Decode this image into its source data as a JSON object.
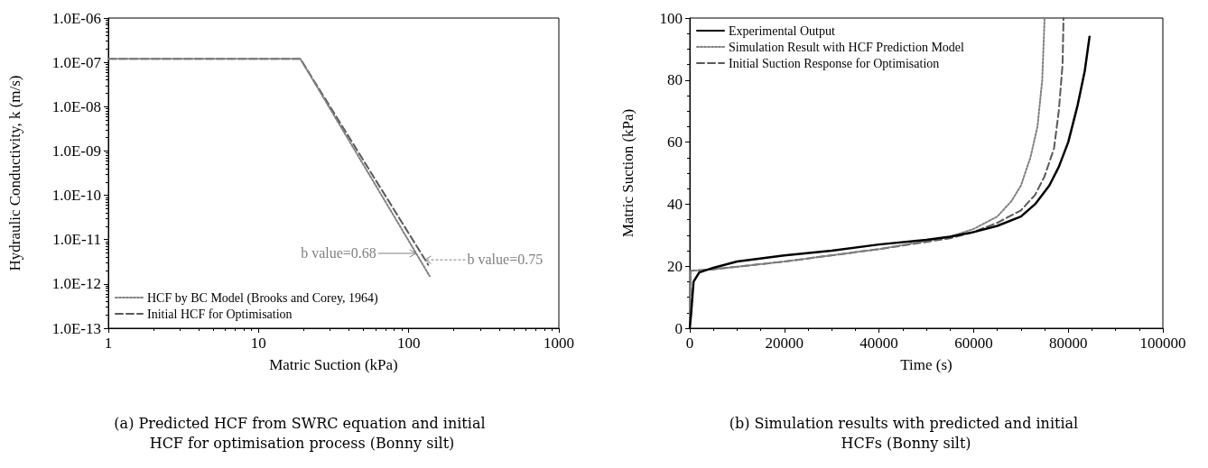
{
  "chart_data": [
    {
      "type": "line",
      "title": "(a) Predicted HCF from SWRC equation and initial HCF for optimisation process (Bonny silt)",
      "xlabel": "Matric Suction (kPa)",
      "ylabel": "Hydraulic Conductivity, k (m/s)",
      "log": "xy",
      "xlim": [
        1,
        1000
      ],
      "xticks": [
        1,
        10,
        100,
        1000
      ],
      "ylim": [
        1e-13,
        1e-06
      ],
      "yticks": [
        {
          "value": 1e-13,
          "label": "1.0E-13"
        },
        {
          "value": 1e-12,
          "label": "1.0E-12"
        },
        {
          "value": 1e-11,
          "label": "1.0E-11"
        },
        {
          "value": 1e-10,
          "label": "1.0E-10"
        },
        {
          "value": 1e-09,
          "label": "1.0E-09"
        },
        {
          "value": 1e-08,
          "label": "1.0E-08"
        },
        {
          "value": 1e-07,
          "label": "1.0E-07"
        },
        {
          "value": 1e-06,
          "label": "1.0E-06"
        }
      ],
      "grid": false,
      "legend": "bottom left",
      "marker": "none",
      "series": [
        {
          "name": "HCF by BC Model (Brooks and Corey, 1964)",
          "color": "#808080",
          "line_style": "dotted",
          "x": [
            1,
            19,
            138
          ],
          "values": [
            1.2e-07,
            1.2e-07,
            1.5e-12
          ]
        },
        {
          "name": "Initial HCF for Optimisation",
          "color": "#595959",
          "line_style": "dashed",
          "x": [
            1,
            19,
            135
          ],
          "values": [
            1.2e-07,
            1.2e-07,
            2.7e-12
          ]
        }
      ],
      "annotations": [
        {
          "text": "b value=0.68",
          "x": 112,
          "y": 4.9e-12
        },
        {
          "text": "b value=0.75",
          "x": 128,
          "y": 3.5e-12
        }
      ]
    },
    {
      "type": "line",
      "title": "(b) Simulation results with predicted and initial HCFs (Bonny silt)",
      "xlabel": "Time (s)",
      "ylabel": "Matric Suction (kPa)",
      "xlim": [
        0,
        100000
      ],
      "xticks": [
        0,
        20000,
        40000,
        60000,
        80000,
        100000
      ],
      "ylim": [
        0,
        100
      ],
      "yticks": [
        0,
        20,
        40,
        60,
        80,
        100
      ],
      "grid": false,
      "legend": "top left",
      "marker": "none",
      "series": [
        {
          "name": "Experimental Output",
          "color": "#000000",
          "line_style": "solid",
          "x": [
            0,
            300,
            800,
            2000,
            5000,
            10000,
            20000,
            30000,
            40000,
            50000,
            55000,
            60000,
            65000,
            70000,
            73000,
            76000,
            78000,
            80000,
            82000,
            83500,
            84500
          ],
          "values": [
            0,
            5,
            15,
            18,
            19.5,
            21.5,
            23.5,
            25,
            27,
            28.5,
            29.5,
            31,
            33,
            36,
            40,
            46,
            52,
            60,
            72,
            83,
            94
          ]
        },
        {
          "name": "Simulation Result with HCF Prediction Model",
          "color": "#808080",
          "line_style": "dotted",
          "x": [
            0,
            200,
            5000,
            20000,
            40000,
            55000,
            60000,
            65000,
            68000,
            70000,
            72000,
            73500,
            74500,
            75000
          ],
          "values": [
            0,
            18.5,
            19,
            21.5,
            25.5,
            29.5,
            32,
            36,
            41,
            46,
            55,
            65,
            80,
            100
          ]
        },
        {
          "name": "Initial Suction Response for Optimisation",
          "color": "#595959",
          "line_style": "dashed",
          "x": [
            0,
            200,
            5000,
            20000,
            40000,
            55000,
            60000,
            65000,
            70000,
            73000,
            75000,
            77000,
            78000,
            78800,
            79000
          ],
          "values": [
            0,
            18.5,
            19,
            21.5,
            25.5,
            29,
            31,
            34,
            38,
            43,
            49,
            58,
            70,
            85,
            100
          ]
        }
      ]
    }
  ]
}
